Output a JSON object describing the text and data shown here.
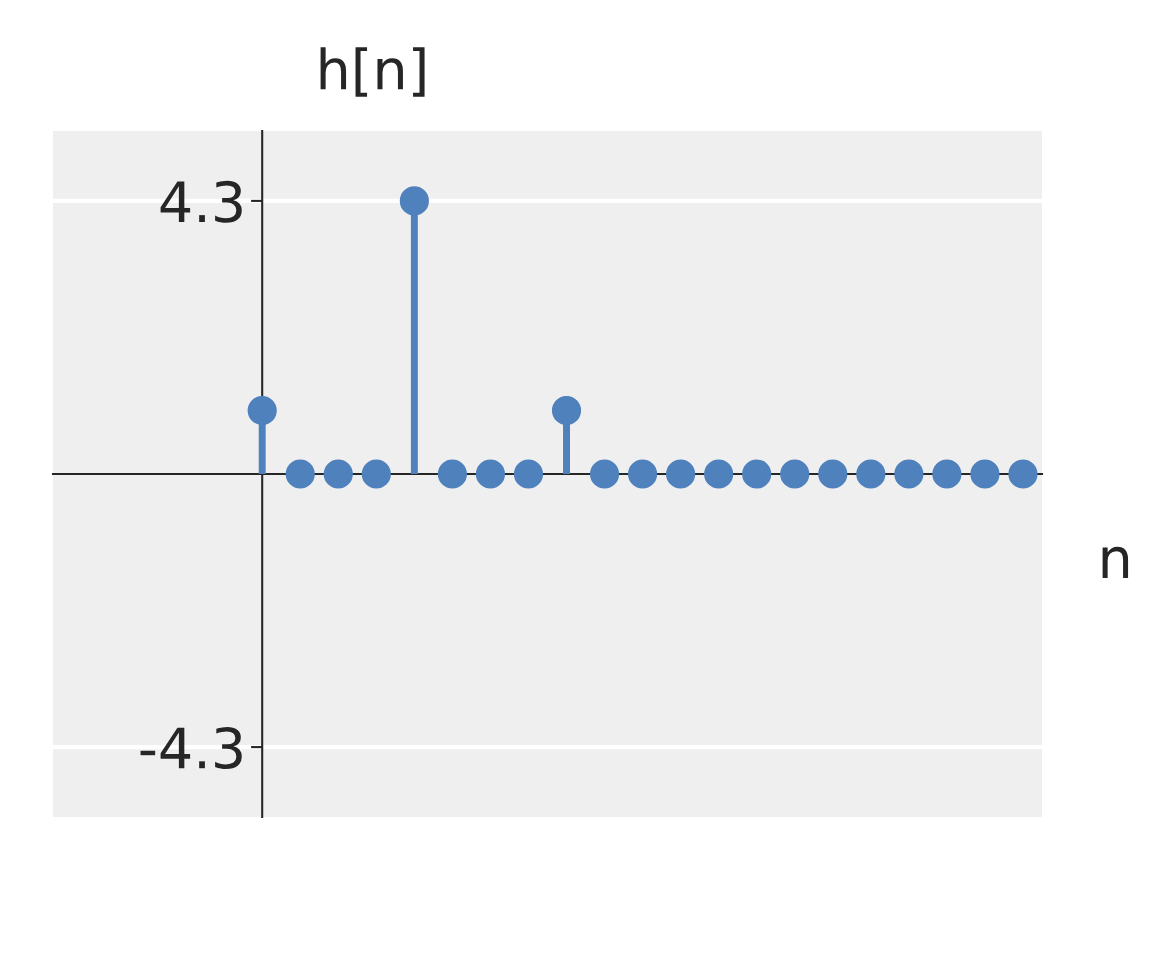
{
  "chart_data": {
    "type": "lollipop",
    "title": "h[n]",
    "xlabel": "n",
    "categories": [
      null,
      null,
      null,
      null,
      null,
      null,
      null,
      null,
      null,
      null,
      null,
      null,
      null,
      null,
      null,
      null,
      null,
      null,
      null,
      null,
      null,
      null,
      null,
      null,
      null,
      null
    ],
    "series": [
      {
        "color": "#4f81bd",
        "values": [
          null,
          null,
          null,
          null,
          null,
          1.0,
          0,
          0,
          0,
          4.3,
          0,
          0,
          0,
          1.0,
          0,
          0,
          0,
          0,
          0,
          0,
          0,
          0,
          0,
          0,
          0,
          0
        ]
      }
    ],
    "ylim": [
      -5.4,
      5.4
    ],
    "yticks": [
      {
        "value": 4.3,
        "label": "4.3"
      },
      {
        "value": -4.3,
        "label": "-4.3"
      }
    ],
    "grid": "y",
    "tick_labels": "y",
    "marker": "circle"
  }
}
